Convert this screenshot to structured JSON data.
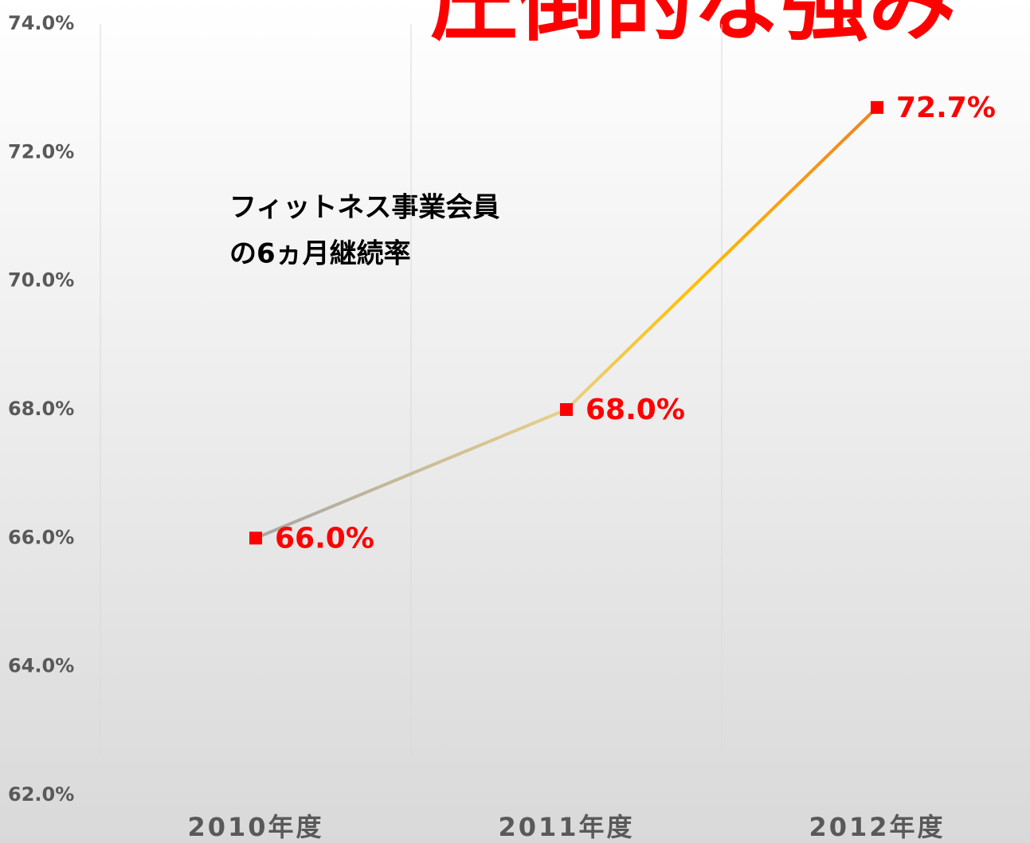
{
  "chart_data": {
    "type": "line",
    "title": "圧倒的な強み",
    "annotation": [
      "フィットネス事業会員",
      "の6ヵ月継続率"
    ],
    "categories": [
      "2010年度",
      "2011年度",
      "2012年度"
    ],
    "series": [
      {
        "name": "フィットネス事業会員の6ヵ月継続率",
        "color": "#ff0000",
        "values": [
          66.0,
          68.0,
          72.7
        ],
        "value_labels": [
          "66.0%",
          "68.0%",
          "72.7%"
        ]
      }
    ],
    "ylim": [
      62,
      74
    ],
    "yticks": [
      {
        "value": 62,
        "label": "62.0%"
      },
      {
        "value": 64,
        "label": "64.0%"
      },
      {
        "value": 66,
        "label": "66.0%"
      },
      {
        "value": 68,
        "label": "68.0%"
      },
      {
        "value": 70,
        "label": "70.0%"
      },
      {
        "value": 72,
        "label": "72.0%"
      },
      {
        "value": 74,
        "label": "74.0%"
      }
    ],
    "grid": true
  }
}
